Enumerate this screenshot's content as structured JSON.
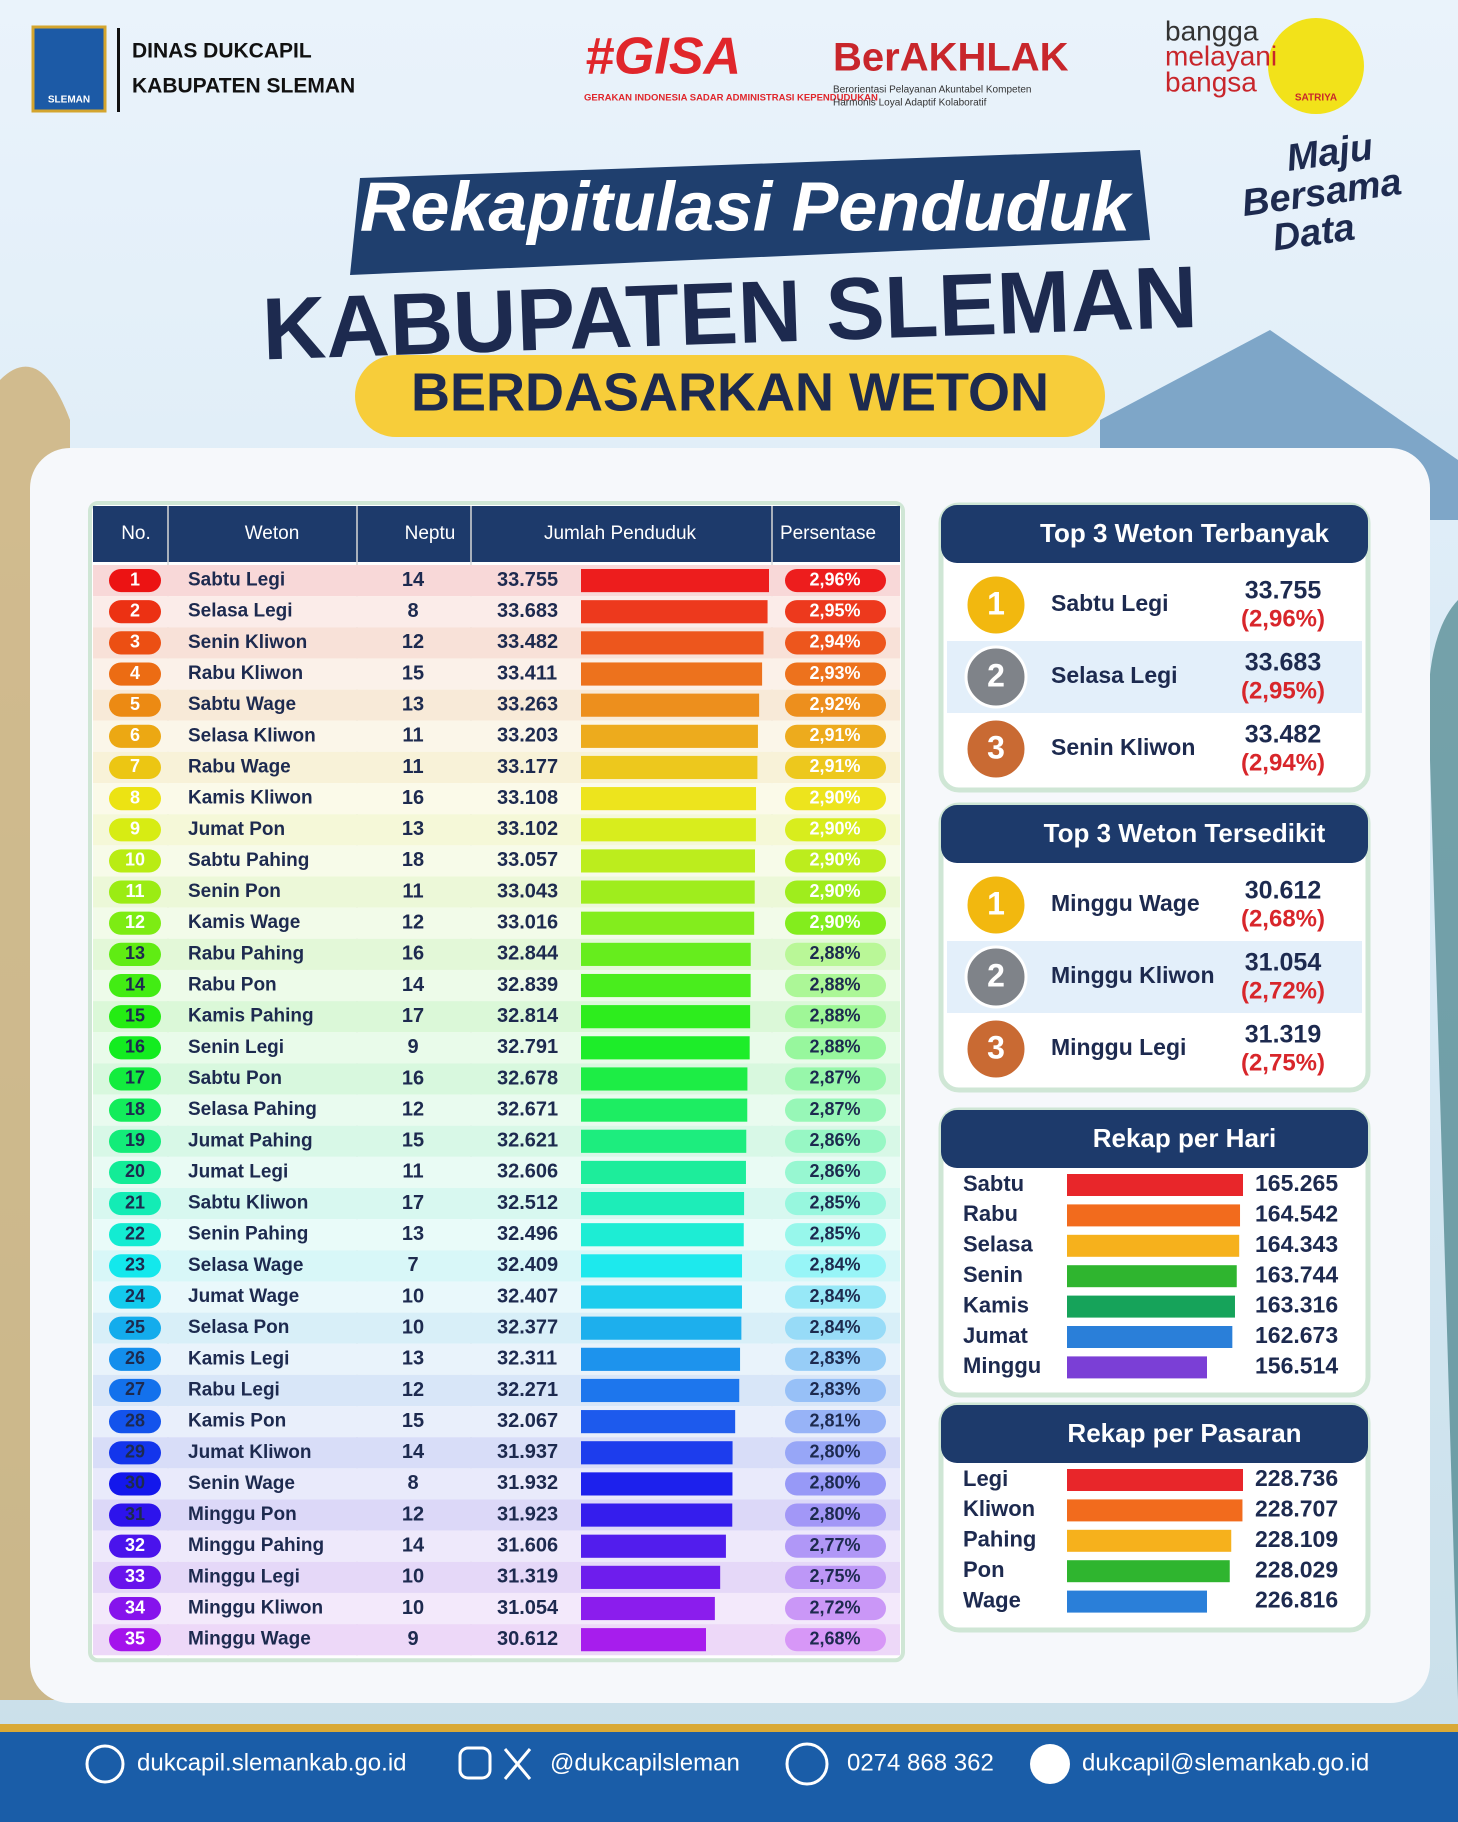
{
  "header": {
    "org": [
      "DINAS DUKCAPIL",
      "KABUPATEN SLEMAN"
    ],
    "logo_text": "SLEMAN",
    "gisa": {
      "title": "#GISA",
      "subtitle": "GERAKAN INDONESIA SADAR ADMINISTRASI KEPENDUDUKAN"
    },
    "berakhlak": {
      "title": "BerAKHLAK",
      "subtitle": [
        "Berorientasi Pelayanan Akuntabel Kompeten",
        "Harmonis Loyal Adaptif Kolaboratif"
      ]
    },
    "bangga": [
      "bangga",
      "melayani",
      "bangsa"
    ],
    "satriya": "SATRIYA"
  },
  "title": {
    "script": "Rekapitulasi Penduduk",
    "main": "KABUPATEN SLEMAN",
    "sub": "BERDASARKAN WETON",
    "tagline": [
      "Maju",
      "Bersama",
      "Data"
    ]
  },
  "table": {
    "columns": [
      "No.",
      "Weton",
      "Neptu",
      "Jumlah Penduduk",
      "Persentase"
    ],
    "no": [
      1,
      2,
      3,
      4,
      5,
      6,
      7,
      8,
      9,
      10,
      11,
      12,
      13,
      14,
      15,
      16,
      17,
      18,
      19,
      20,
      21,
      22,
      23,
      24,
      25,
      26,
      27,
      28,
      29,
      30,
      31,
      32,
      33,
      34,
      35
    ],
    "weton": [
      "Sabtu Legi",
      "Selasa Legi",
      "Senin Kliwon",
      "Rabu Kliwon",
      "Sabtu Wage",
      "Selasa Kliwon",
      "Rabu Wage",
      "Kamis Kliwon",
      "Jumat Pon",
      "Sabtu Pahing",
      "Senin Pon",
      "Kamis Wage",
      "Rabu Pahing",
      "Rabu Pon",
      "Kamis Pahing",
      "Senin Legi",
      "Sabtu Pon",
      "Selasa Pahing",
      "Jumat Pahing",
      "Jumat Legi",
      "Sabtu Kliwon",
      "Senin Pahing",
      "Selasa Wage",
      "Jumat Wage",
      "Selasa Pon",
      "Kamis Legi",
      "Rabu Legi",
      "Kamis Pon",
      "Jumat Kliwon",
      "Senin Wage",
      "Minggu Pon",
      "Minggu Pahing",
      "Minggu Legi",
      "Minggu Kliwon",
      "Minggu Wage"
    ],
    "neptu": [
      14,
      8,
      12,
      15,
      13,
      11,
      11,
      16,
      13,
      18,
      11,
      12,
      16,
      14,
      17,
      9,
      16,
      12,
      15,
      11,
      17,
      13,
      7,
      10,
      10,
      13,
      12,
      15,
      14,
      8,
      12,
      14,
      10,
      10,
      9
    ],
    "values": [
      33755,
      33683,
      33482,
      33411,
      33263,
      33203,
      33177,
      33108,
      33102,
      33057,
      33043,
      33016,
      32844,
      32839,
      32814,
      32791,
      32678,
      32671,
      32621,
      32606,
      32512,
      32496,
      32409,
      32407,
      32377,
      32311,
      32271,
      32067,
      31937,
      31932,
      31923,
      31606,
      31319,
      31054,
      30612
    ],
    "value_labels": [
      "33.755",
      "33.683",
      "33.482",
      "33.411",
      "33.263",
      "33.203",
      "33.177",
      "33.108",
      "33.102",
      "33.057",
      "33.043",
      "33.016",
      "32.844",
      "32.839",
      "32.814",
      "32.791",
      "32.678",
      "32.671",
      "32.621",
      "32.606",
      "32.512",
      "32.496",
      "32.409",
      "32.407",
      "32.377",
      "32.311",
      "32.271",
      "32.067",
      "31.937",
      "31.932",
      "31.923",
      "31.606",
      "31.319",
      "31.054",
      "30.612"
    ],
    "percentages": [
      "2,96%",
      "2,95%",
      "2,94%",
      "2,93%",
      "2,92%",
      "2,91%",
      "2,91%",
      "2,90%",
      "2,90%",
      "2,90%",
      "2,90%",
      "2,90%",
      "2,88%",
      "2,88%",
      "2,88%",
      "2,88%",
      "2,87%",
      "2,87%",
      "2,86%",
      "2,86%",
      "2,85%",
      "2,85%",
      "2,84%",
      "2,84%",
      "2,84%",
      "2,83%",
      "2,83%",
      "2,81%",
      "2,80%",
      "2,80%",
      "2,80%",
      "2,77%",
      "2,75%",
      "2,72%",
      "2,68%"
    ]
  },
  "top_most": {
    "title": "Top 3 Weton Terbanyak",
    "items": [
      {
        "rank": 1,
        "name": "Sabtu Legi",
        "value": "33.755",
        "percent": "(2,96%)"
      },
      {
        "rank": 2,
        "name": "Selasa Legi",
        "value": "33.683",
        "percent": "(2,95%)"
      },
      {
        "rank": 3,
        "name": "Senin Kliwon",
        "value": "33.482",
        "percent": "(2,94%)"
      }
    ]
  },
  "top_least": {
    "title": "Top 3 Weton Tersedikit",
    "items": [
      {
        "rank": 1,
        "name": "Minggu Wage",
        "value": "30.612",
        "percent": "(2,68%)"
      },
      {
        "rank": 2,
        "name": "Minggu Kliwon",
        "value": "31.054",
        "percent": "(2,72%)"
      },
      {
        "rank": 3,
        "name": "Minggu Legi",
        "value": "31.319",
        "percent": "(2,75%)"
      }
    ]
  },
  "per_day": {
    "title": "Rekap per Hari",
    "categories": [
      "Sabtu",
      "Rabu",
      "Selasa",
      "Senin",
      "Kamis",
      "Jumat",
      "Minggu"
    ],
    "values": [
      165265,
      164542,
      164343,
      163744,
      163316,
      162673,
      156514
    ],
    "value_labels": [
      "165.265",
      "164.542",
      "164.343",
      "163.744",
      "163.316",
      "162.673",
      "156.514"
    ],
    "colors": [
      "#e8262a",
      "#f26b1d",
      "#f6b11c",
      "#2fb52f",
      "#16a35a",
      "#2a7fd9",
      "#7b3fd6"
    ]
  },
  "per_market": {
    "title": "Rekap per Pasaran",
    "categories": [
      "Legi",
      "Kliwon",
      "Pahing",
      "Pon",
      "Wage"
    ],
    "values": [
      228736,
      228707,
      228109,
      228029,
      226816
    ],
    "value_labels": [
      "228.736",
      "228.707",
      "228.109",
      "228.029",
      "226.816"
    ],
    "colors": [
      "#e8262a",
      "#f26b1d",
      "#f6b11c",
      "#2fb52f",
      "#2a7fd9"
    ]
  },
  "footer": {
    "website": "dukcapil.slemankab.go.id",
    "social": "@dukcapilsleman",
    "phone": "0274 868 362",
    "email": "dukcapil@slemankab.go.id"
  }
}
